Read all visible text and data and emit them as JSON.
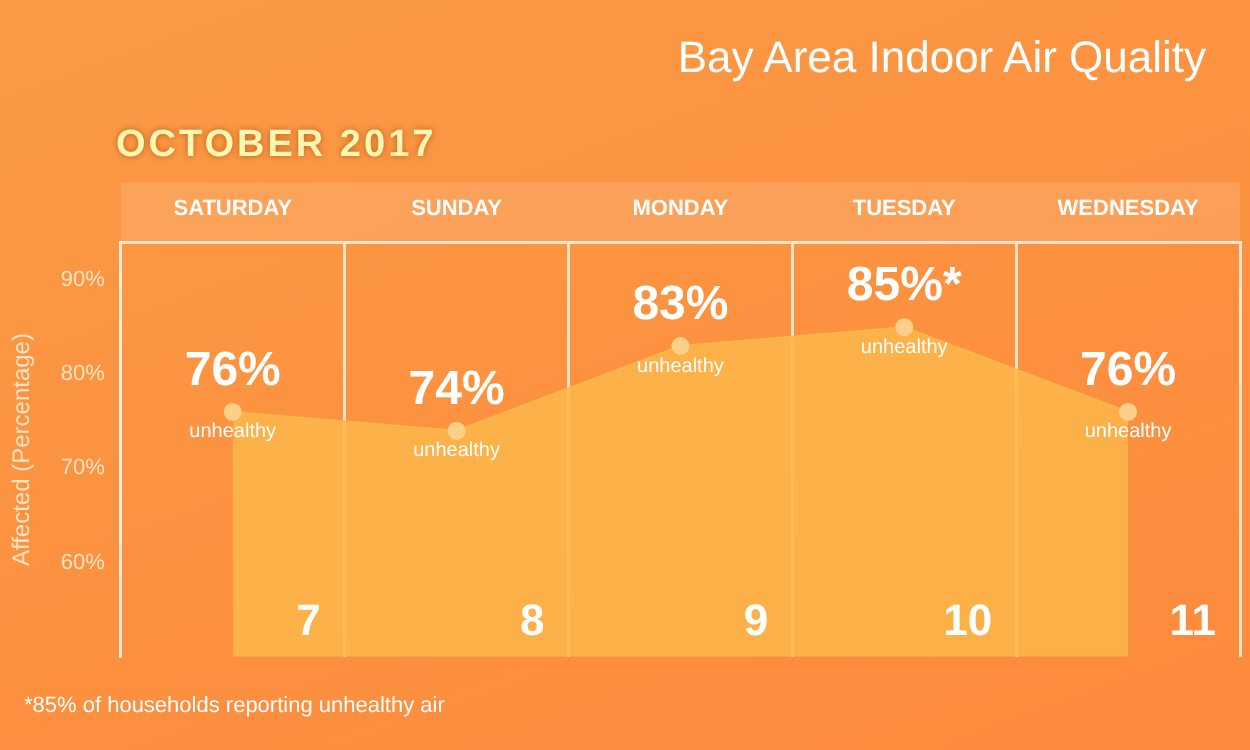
{
  "chart_data": {
    "type": "area",
    "title": "Bay Area Indoor Air Quality",
    "subtitle": "OCTOBER 2017",
    "ylabel": "Affected (Percentage)",
    "categories": [
      "SATURDAY",
      "SUNDAY",
      "MONDAY",
      "TUESDAY",
      "WEDNESDAY"
    ],
    "series": [
      {
        "color": "#fcb64a",
        "values": [
          76,
          74,
          83,
          85,
          76
        ],
        "value_labels": [
          "76%",
          "74%",
          "83%",
          "85%*",
          "76%"
        ]
      }
    ],
    "ylim": [
      50,
      94
    ],
    "yticks": [
      {
        "value": 60,
        "label": "60%"
      },
      {
        "value": 70,
        "label": "70%"
      },
      {
        "value": 80,
        "label": "80%"
      },
      {
        "value": 90,
        "label": "90%"
      }
    ],
    "grid": "x",
    "legend": false,
    "marker": "circle",
    "annotations": [
      {
        "text": "unhealthy",
        "x": "SATURDAY",
        "y": 76
      },
      {
        "text": "unhealthy",
        "x": "SUNDAY",
        "y": 74
      },
      {
        "text": "unhealthy",
        "x": "MONDAY",
        "y": 83
      },
      {
        "text": "unhealthy",
        "x": "TUESDAY",
        "y": 85
      },
      {
        "text": "unhealthy",
        "x": "WEDNESDAY",
        "y": 76
      },
      "7",
      "8",
      "9",
      "10",
      "11",
      "*85% of households reporting unhealthy air"
    ]
  }
}
